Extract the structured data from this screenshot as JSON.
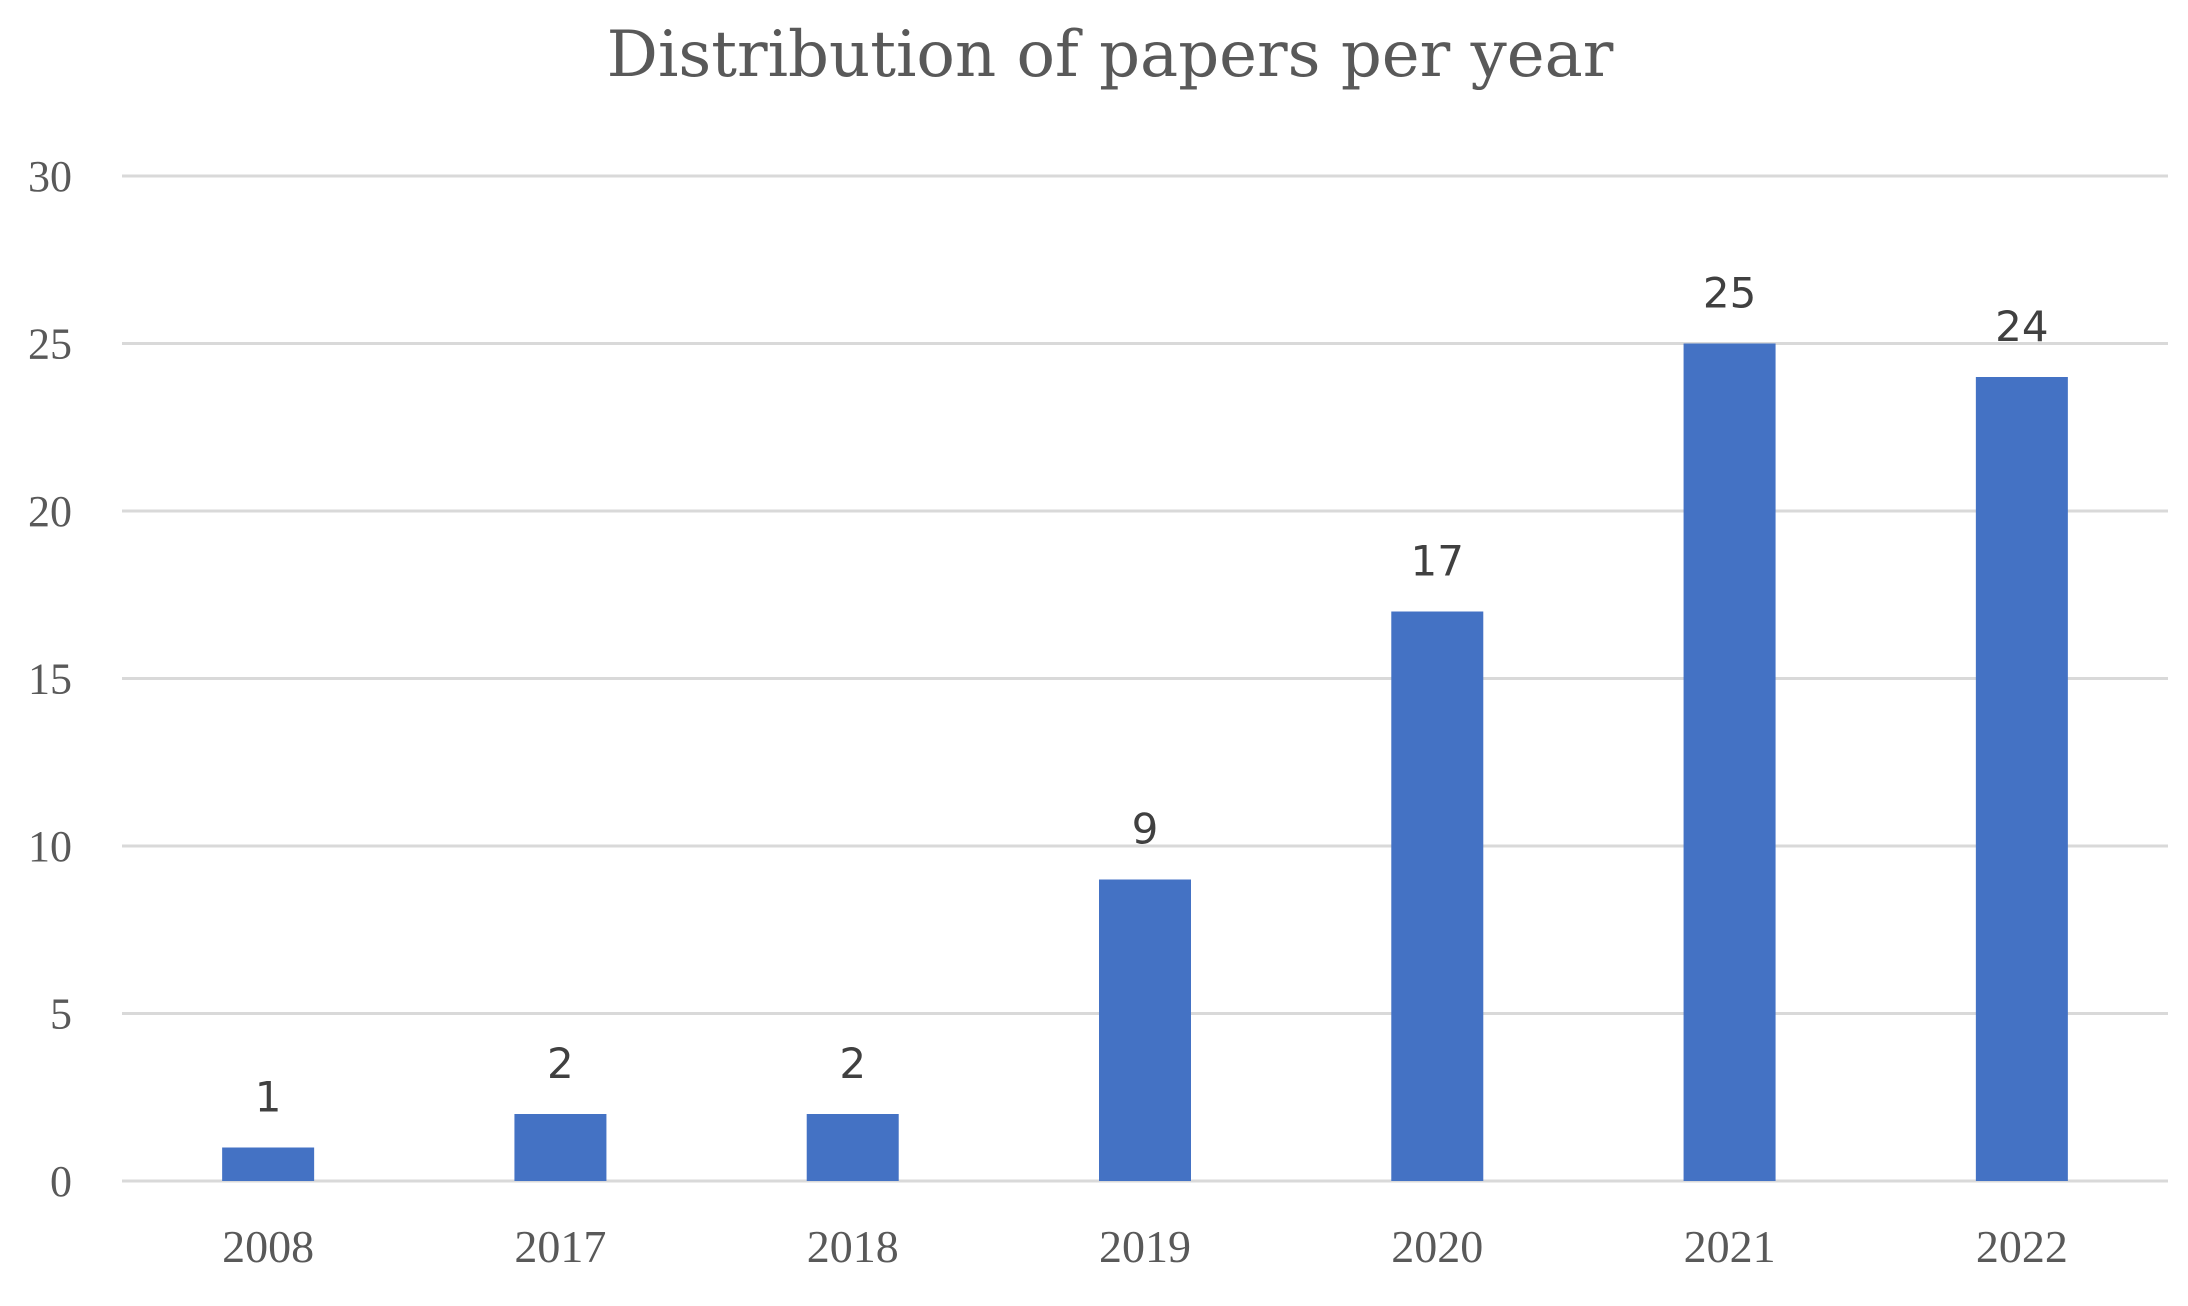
{
  "chart_data": {
    "type": "bar",
    "title": "Distribution of papers per year",
    "xlabel": "",
    "ylabel": "",
    "categories": [
      "2008",
      "2017",
      "2018",
      "2019",
      "2020",
      "2021",
      "2022"
    ],
    "values": [
      1,
      2,
      2,
      9,
      17,
      25,
      24
    ],
    "data_labels": [
      "1",
      "2",
      "2",
      "9",
      "17",
      "25",
      "24"
    ],
    "ylim": [
      0,
      30
    ],
    "yticks": [
      0,
      5,
      10,
      15,
      20,
      25,
      30
    ],
    "grid": true,
    "legend": "none",
    "bar_color": "#4472c4"
  }
}
